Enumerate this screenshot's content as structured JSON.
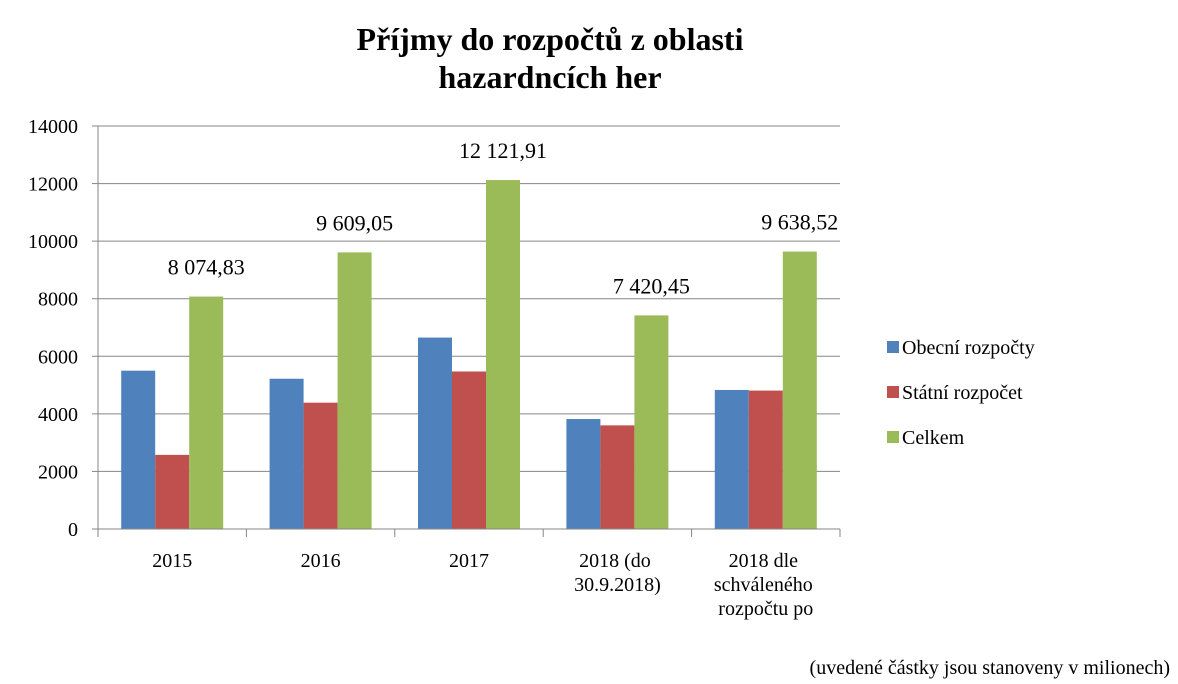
{
  "chart_data": {
    "type": "bar",
    "title": [
      "Příjmy do rozpočtů z oblasti",
      "hazardncích her"
    ],
    "categories": [
      "2015",
      "2016",
      "2017",
      "2018 (do 30.9.2018)",
      "2018 dle schváleného rozpočtu po"
    ],
    "series": [
      {
        "name": "Obecní rozpočty",
        "color": "#4f81bd",
        "values": [
          5500,
          5220,
          6650,
          3820,
          4830
        ]
      },
      {
        "name": "Státní rozpočet",
        "color": "#c0504d",
        "values": [
          2575,
          4389,
          5472,
          3600,
          4809
        ]
      },
      {
        "name": "Celkem",
        "color": "#9bbb59",
        "values": [
          8074.83,
          9609.05,
          12121.91,
          7420.45,
          9638.52
        ],
        "value_labels": [
          "8 074,83",
          "9 609,05",
          "12 121,91",
          "7 420,45",
          "9 638,52"
        ]
      }
    ],
    "ylim": [
      0,
      14000
    ],
    "yticks": [
      0,
      2000,
      4000,
      6000,
      8000,
      10000,
      12000,
      14000
    ],
    "grid": true,
    "legend": "right",
    "note": "(uvedené částky jsou stanoveny v milionech)"
  }
}
